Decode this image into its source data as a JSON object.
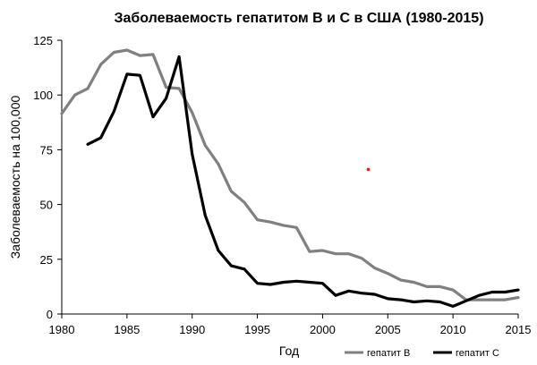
{
  "chart_data": {
    "type": "line",
    "title": "Заболеваемость гепатитом B и C в США (1980-2015)",
    "xlabel": "Год",
    "ylabel": "Заболеваемость на 100,000",
    "xlim": [
      1980,
      2015
    ],
    "ylim": [
      0,
      125
    ],
    "x_ticks": [
      1980,
      1985,
      1990,
      1995,
      2000,
      2005,
      2010,
      2015
    ],
    "y_ticks": [
      0,
      25,
      50,
      75,
      100,
      125
    ],
    "y_tick_labels": [
      "0",
      "25",
      "50",
      "75",
      "100",
      "125"
    ],
    "grid": false,
    "legend_position": "bottom-right",
    "series": [
      {
        "name": "гепатит B",
        "color": "#808080",
        "x": [
          1980,
          1981,
          1982,
          1983,
          1984,
          1985,
          1986,
          1987,
          1988,
          1989,
          1990,
          1991,
          1992,
          1993,
          1994,
          1995,
          1996,
          1997,
          1998,
          1999,
          2000,
          2001,
          2002,
          2003,
          2004,
          2005,
          2006,
          2007,
          2008,
          2009,
          2010,
          2011,
          2012,
          2013,
          2014,
          2015
        ],
        "values": [
          91.5,
          100,
          103,
          114,
          119.5,
          120.5,
          118,
          118.5,
          103.5,
          103,
          92,
          77,
          68.5,
          56,
          51,
          43,
          42,
          40.5,
          39.5,
          28.5,
          29,
          27.5,
          27.5,
          25.5,
          21,
          18.5,
          15.5,
          14.5,
          12.5,
          12.5,
          11,
          6.5,
          6.5,
          6.5,
          6.5,
          7.5
        ]
      },
      {
        "name": "гепатит C",
        "color": "#000000",
        "x": [
          1982,
          1983,
          1984,
          1985,
          1986,
          1987,
          1988,
          1989,
          1990,
          1991,
          1992,
          1993,
          1994,
          1995,
          1996,
          1997,
          1998,
          1999,
          2000,
          2001,
          2002,
          2003,
          2004,
          2005,
          2006,
          2007,
          2008,
          2009,
          2010,
          2011,
          2012,
          2013,
          2014,
          2015
        ],
        "values": [
          77.5,
          80.5,
          92.5,
          109.5,
          109,
          90,
          98.5,
          117.5,
          73,
          45,
          29,
          22,
          20.5,
          14,
          13.5,
          14.5,
          15,
          14.5,
          14,
          8.5,
          10.5,
          9.5,
          9,
          7,
          6.5,
          5.5,
          6,
          5.5,
          3.5,
          6,
          8.5,
          10,
          10,
          11
        ]
      }
    ],
    "annotations": [
      {
        "type": "marker",
        "x": 2003.5,
        "y": 66,
        "color": "#e02020"
      }
    ]
  }
}
